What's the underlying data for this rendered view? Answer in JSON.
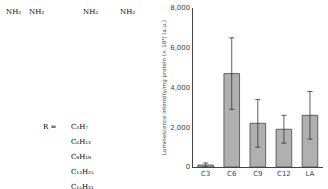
{
  "chart_data": {
    "type": "bar",
    "ylabel": "Luminescence intensity/mg protein (× 10³) (a.u.)",
    "categories": [
      "C3",
      "C6",
      "C9",
      "C12",
      "LA"
    ],
    "values": [
      100,
      4700,
      2200,
      1900,
      2600
    ],
    "errors": [
      100,
      1800,
      1200,
      700,
      1200
    ],
    "color": "#b0b0b0",
    "ylim": [
      0,
      8000
    ],
    "yticks": [
      0,
      {
        "value": 2000,
        "label": "2,000"
      },
      {
        "value": 4000,
        "label": "4,000"
      },
      {
        "value": 6000,
        "label": "6,000"
      },
      {
        "value": 8000,
        "label": "8,000"
      }
    ],
    "grid": false,
    "annotations": [
      "NH₂",
      "NH₂",
      "NH₂",
      "NH₂",
      "R =",
      "C₃H₇",
      "C₆H₁₃",
      "C₉H₁₉",
      "C₁₂H₂₅",
      "C₁₅H₃₁"
    ]
  }
}
